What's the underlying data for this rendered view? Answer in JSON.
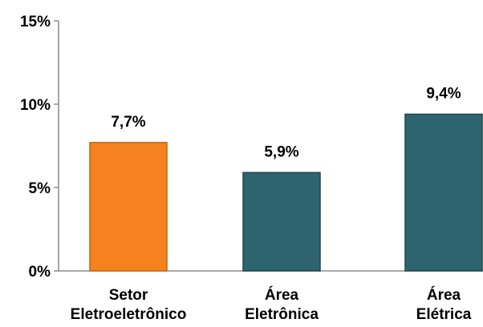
{
  "chart_data": {
    "type": "bar",
    "title": "",
    "xlabel": "",
    "ylabel": "",
    "ylim": [
      0,
      15
    ],
    "y_ticks": [
      "0%",
      "5%",
      "10%",
      "15%"
    ],
    "y_tick_values": [
      0,
      5,
      10,
      15
    ],
    "grid": false,
    "categories": [
      [
        "Setor",
        "Eletroeletrônico"
      ],
      [
        "Área",
        "Eletrônica"
      ],
      [
        "Área",
        "Elétrica"
      ]
    ],
    "values": [
      7.7,
      5.9,
      9.4
    ],
    "data_labels": [
      "7,7%",
      "5,9%",
      "9,4%"
    ],
    "colors": [
      "#f5821f",
      "#2e6470",
      "#2e6470"
    ],
    "border_colors": [
      "#c4640f",
      "#1d4850",
      "#1d4850"
    ]
  }
}
